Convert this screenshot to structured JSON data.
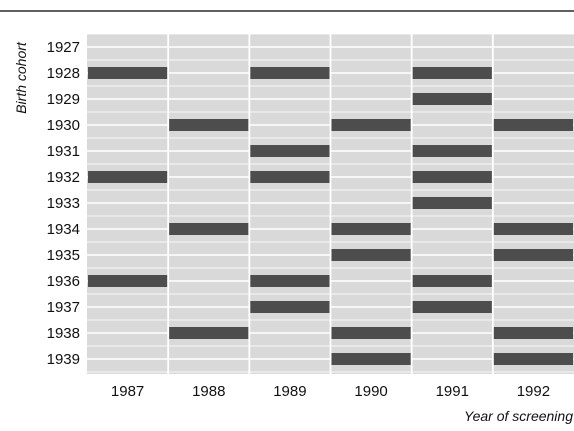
{
  "chart_data": {
    "type": "heatmap",
    "title": "",
    "xlabel": "Year of screening",
    "ylabel": "Birth cohort",
    "x": [
      "1987",
      "1988",
      "1989",
      "1990",
      "1991",
      "1992"
    ],
    "y": [
      "1927",
      "1928",
      "1929",
      "1930",
      "1931",
      "1932",
      "1933",
      "1934",
      "1935",
      "1936",
      "1937",
      "1938",
      "1939"
    ],
    "values": [
      [
        0,
        0,
        0,
        0,
        0,
        0
      ],
      [
        1,
        0,
        1,
        0,
        1,
        0
      ],
      [
        0,
        0,
        0,
        0,
        1,
        0
      ],
      [
        0,
        1,
        0,
        1,
        0,
        1
      ],
      [
        0,
        0,
        1,
        0,
        1,
        0
      ],
      [
        1,
        0,
        1,
        0,
        1,
        0
      ],
      [
        0,
        0,
        0,
        0,
        1,
        0
      ],
      [
        0,
        1,
        0,
        1,
        0,
        1
      ],
      [
        0,
        0,
        0,
        1,
        0,
        1
      ],
      [
        1,
        0,
        1,
        0,
        1,
        0
      ],
      [
        0,
        0,
        1,
        0,
        1,
        0
      ],
      [
        0,
        1,
        0,
        1,
        0,
        1
      ],
      [
        0,
        0,
        0,
        1,
        0,
        1
      ]
    ],
    "value_meaning": {
      "0": "not screened",
      "1": "screened"
    },
    "colors": {
      "background": "#d9d9d9",
      "screened": "#4d4d4d",
      "gridline": "#ffffff",
      "rule": "#000000"
    },
    "grid": true,
    "legend": "none"
  }
}
